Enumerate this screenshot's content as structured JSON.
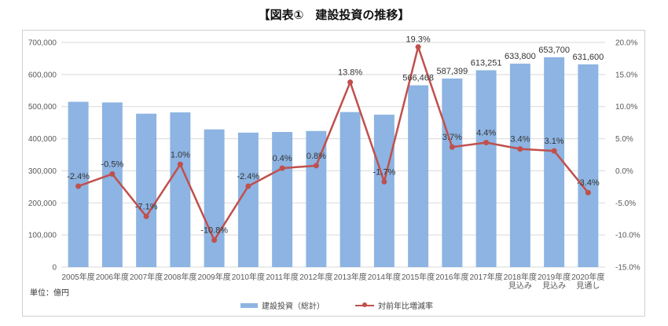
{
  "title": "【図表①　建設投資の推移】",
  "unit_label": "単位：億円",
  "colors": {
    "bar": "#8db4e2",
    "line": "#c0504d",
    "grid": "#d9d9d9",
    "text": "#595959"
  },
  "chart_data": {
    "type": "bar",
    "combo": "bar+line (secondary axis)",
    "title": "【図表①　建設投資の推移】",
    "categories": [
      [
        "2005年度"
      ],
      [
        "2006年度"
      ],
      [
        "2007年度"
      ],
      [
        "2008年度"
      ],
      [
        "2009年度"
      ],
      [
        "2010年度"
      ],
      [
        "2011年度"
      ],
      [
        "2012年度"
      ],
      [
        "2013年度"
      ],
      [
        "2014年度"
      ],
      [
        "2015年度"
      ],
      [
        "2016年度"
      ],
      [
        "2017年度"
      ],
      [
        "2018年度",
        "見込み"
      ],
      [
        "2019年度",
        "見込み"
      ],
      [
        "2020年度",
        "見通し"
      ]
    ],
    "series": [
      {
        "name": "建設投資（総計）",
        "type": "bar",
        "axis": "left",
        "values": [
          515000,
          513000,
          478000,
          482000,
          429000,
          419000,
          421000,
          424000,
          483000,
          475000,
          566468,
          587399,
          613251,
          633800,
          653700,
          631600
        ],
        "labels": [
          "",
          "",
          "",
          "",
          "",
          "",
          "",
          "",
          "",
          "",
          "566,468",
          "587,399",
          "613,251",
          "633,800",
          "653,700",
          "631,600"
        ]
      },
      {
        "name": "対前年比増減率",
        "type": "line",
        "axis": "right",
        "values": [
          -2.4,
          -0.5,
          -7.1,
          1.0,
          -10.8,
          -2.4,
          0.4,
          0.8,
          13.8,
          -1.7,
          19.3,
          3.7,
          4.4,
          3.4,
          3.1,
          -3.4
        ],
        "labels": [
          "-2.4%",
          "-0.5%",
          "-7.1%",
          "1.0%",
          "-10.8%",
          "-2.4%",
          "0.4%",
          "0.8%",
          "13.8%",
          "-1.7%",
          "19.3%",
          "3.7%",
          "4.4%",
          "3.4%",
          "3.1%",
          "-3.4%"
        ]
      }
    ],
    "y_left": {
      "min": 0,
      "max": 700000,
      "step": 100000,
      "tick_labels": [
        "0",
        "100,000",
        "200,000",
        "300,000",
        "400,000",
        "500,000",
        "600,000",
        "700,000"
      ]
    },
    "y_right": {
      "min": -15,
      "max": 20,
      "step": 5,
      "tick_labels": [
        "-15.0%",
        "-10.0%",
        "-5.0%",
        "0.0%",
        "5.0%",
        "10.0%",
        "15.0%",
        "20.0%"
      ]
    },
    "grid": true,
    "legend_position": "bottom"
  }
}
